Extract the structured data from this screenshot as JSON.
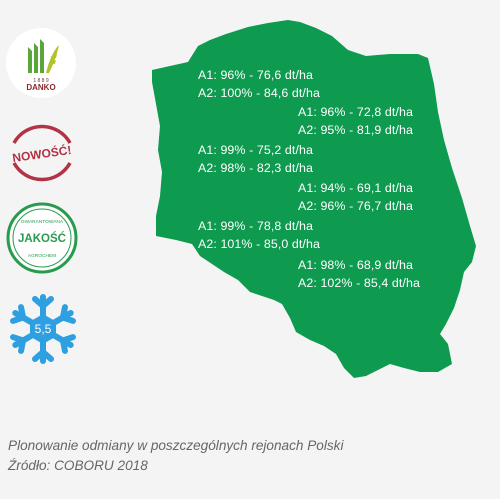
{
  "colors": {
    "background": "#f4f4f4",
    "map_fill": "#0e9a4f",
    "badge_red": "#b23246",
    "badge_green": "#279b4e",
    "snow_blue": "#2ea0e1"
  },
  "badges": {
    "danko": {
      "icon": "danko-logo",
      "year": "1 8 8 9",
      "brand": "DANKO"
    },
    "new": {
      "label": "NOWOŚĆ!"
    },
    "quality": {
      "top_text": "GWARANTOWANA",
      "main_text": "JAKOŚĆ",
      "bottom_text": "AGROCHEM"
    },
    "frost": {
      "icon": "snowflake-icon",
      "value": "5,5"
    }
  },
  "regions": [
    {
      "a1": "A1: 96% - 76,6 dt/ha",
      "a2": "A2: 100% - 84,6 dt/ha"
    },
    {
      "a1": "A1: 96% - 72,8 dt/ha",
      "a2": "A2: 95% - 81,9 dt/ha"
    },
    {
      "a1": "A1: 99% - 75,2 dt/ha",
      "a2": "A2: 98% - 82,3 dt/ha"
    },
    {
      "a1": "A1: 94% - 69,1 dt/ha",
      "a2": "A2: 96% - 76,7 dt/ha"
    },
    {
      "a1": "A1: 99% - 78,8 dt/ha",
      "a2": "A2: 101% - 85,0 dt/ha"
    },
    {
      "a1": "A1: 98% - 68,9 dt/ha",
      "a2": "A2: 102% - 85,4 dt/ha"
    }
  ],
  "caption": {
    "line1": "Plonowanie odmiany w poszczególnych rejonach Polski",
    "line2": "Źródło: COBORU 2018"
  }
}
